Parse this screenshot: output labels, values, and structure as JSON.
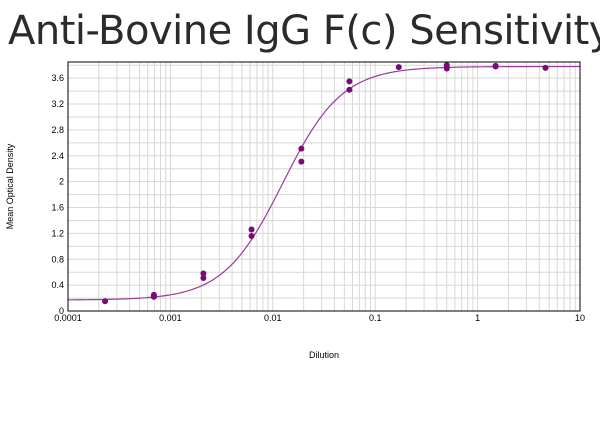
{
  "chart_data": {
    "type": "scatter",
    "title": "Anti-Bovine IgG F(c) Sensitivity",
    "xlabel": "Dilution",
    "ylabel": "Mean Optical Density",
    "x_scale": "log",
    "xlim": [
      0.0001,
      10
    ],
    "ylim": [
      0,
      3.85
    ],
    "x_ticks": [
      0.0001,
      0.001,
      0.01,
      0.1,
      1,
      10
    ],
    "x_tick_labels": [
      "0.0001",
      "0.001",
      "0.01",
      "0.1",
      "1",
      "10"
    ],
    "y_ticks": [
      0,
      0.4,
      0.8,
      1.2,
      1.6,
      2,
      2.4,
      2.8,
      3.2,
      3.6
    ],
    "y_tick_labels": [
      "0",
      "0.4",
      "0.8",
      "1.2",
      "1.6",
      "2",
      "2.4",
      "2.8",
      "3.2",
      "3.6"
    ],
    "grid": true,
    "colors": {
      "points": "#7a0a7a",
      "curve": "#9a3a9a",
      "grid": "#d8d8d8",
      "axis": "#000000"
    },
    "points": [
      {
        "x": 0.00023,
        "y": 0.15
      },
      {
        "x": 0.00069,
        "y": 0.25
      },
      {
        "x": 0.00069,
        "y": 0.22
      },
      {
        "x": 0.0021,
        "y": 0.58
      },
      {
        "x": 0.0021,
        "y": 0.51
      },
      {
        "x": 0.0062,
        "y": 1.26
      },
      {
        "x": 0.0062,
        "y": 1.16
      },
      {
        "x": 0.019,
        "y": 2.51
      },
      {
        "x": 0.019,
        "y": 2.31
      },
      {
        "x": 0.056,
        "y": 3.55
      },
      {
        "x": 0.056,
        "y": 3.42
      },
      {
        "x": 0.17,
        "y": 3.77
      },
      {
        "x": 0.5,
        "y": 3.8
      },
      {
        "x": 0.5,
        "y": 3.75
      },
      {
        "x": 1.5,
        "y": 3.79
      },
      {
        "x": 1.5,
        "y": 3.78
      },
      {
        "x": 4.6,
        "y": 3.76
      }
    ],
    "fit_curve": {
      "model": "4PL",
      "bottom": 0.17,
      "top": 3.78,
      "ec50": 0.0125,
      "hill": 1.5
    }
  }
}
